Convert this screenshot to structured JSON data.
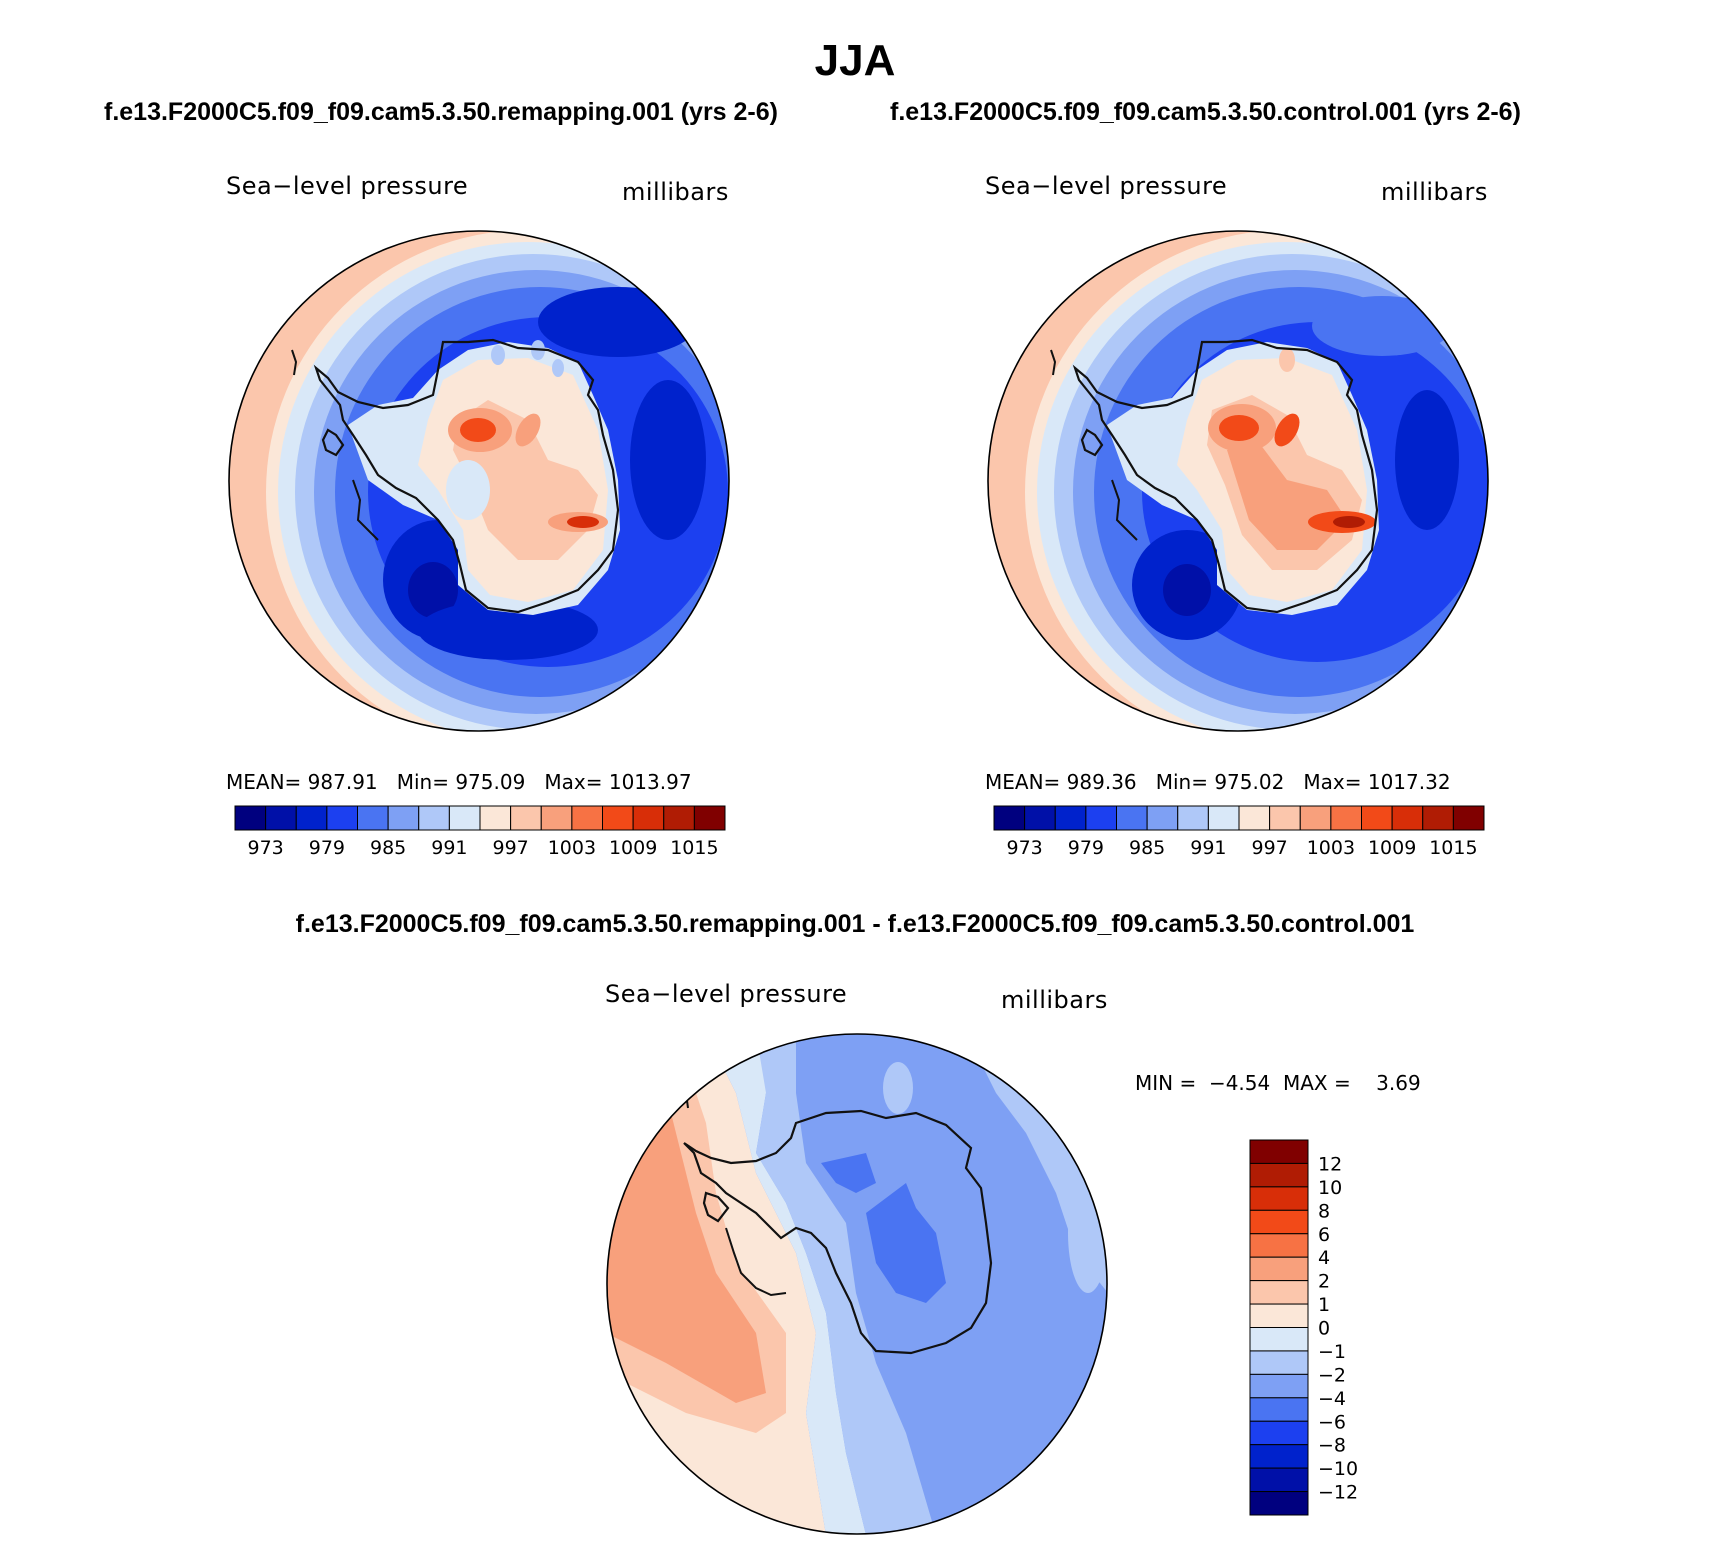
{
  "title": "JJA",
  "panels": {
    "test": {
      "case": "f.e13.F2000C5.f09_f09.cam5.3.50.remapping.001 (yrs 2-6)",
      "variable": "Sea−level pressure",
      "units": "millibars",
      "mean_label": "MEAN=",
      "mean": "987.91",
      "min_label": "Min=",
      "min": "975.09",
      "max_label": "Max=",
      "max": "1013.97"
    },
    "control": {
      "case": "f.e13.F2000C5.f09_f09.cam5.3.50.control.001 (yrs 2-6)",
      "variable": "Sea−level pressure",
      "units": "millibars",
      "mean_label": "MEAN=",
      "mean": "989.36",
      "min_label": "Min=",
      "min": "975.02",
      "max_label": "Max=",
      "max": "1017.32"
    },
    "difference": {
      "title": "f.e13.F2000C5.f09_f09.cam5.3.50.remapping.001 - f.e13.F2000C5.f09_f09.cam5.3.50.control.001",
      "variable": "Sea−level pressure",
      "units": "millibars",
      "min_label": "MIN =",
      "min": "−4.54",
      "max_label": "MAX =",
      "max": "3.69"
    }
  },
  "colorbar_abs": {
    "colors": [
      "#00007f",
      "#0010a8",
      "#0022cc",
      "#1c40f0",
      "#4a74f2",
      "#7ea0f4",
      "#afc8f8",
      "#d9e8f8",
      "#fbe7d8",
      "#fbc6ac",
      "#f8a07c",
      "#f77244",
      "#f24a18",
      "#d82e08",
      "#b01c04",
      "#800000"
    ],
    "labels": [
      "973",
      "979",
      "985",
      "991",
      "997",
      "1003",
      "1009",
      "1015"
    ]
  },
  "colorbar_diff": {
    "colors": [
      "#800000",
      "#b01c04",
      "#d82e08",
      "#f24a18",
      "#f77244",
      "#f8a07c",
      "#fbc6ac",
      "#fbe7d8",
      "#d9e8f8",
      "#afc8f8",
      "#7ea0f4",
      "#4a74f2",
      "#1c40f0",
      "#0022cc",
      "#0010a8",
      "#00007f"
    ],
    "labels": [
      "12",
      "10",
      "8",
      "6",
      "4",
      "2",
      "1",
      "0",
      "−1",
      "−2",
      "−4",
      "−6",
      "−8",
      "−10",
      "−12"
    ]
  },
  "legend_colors": {
    "outline": "#000000",
    "land_outline": "#111111"
  }
}
